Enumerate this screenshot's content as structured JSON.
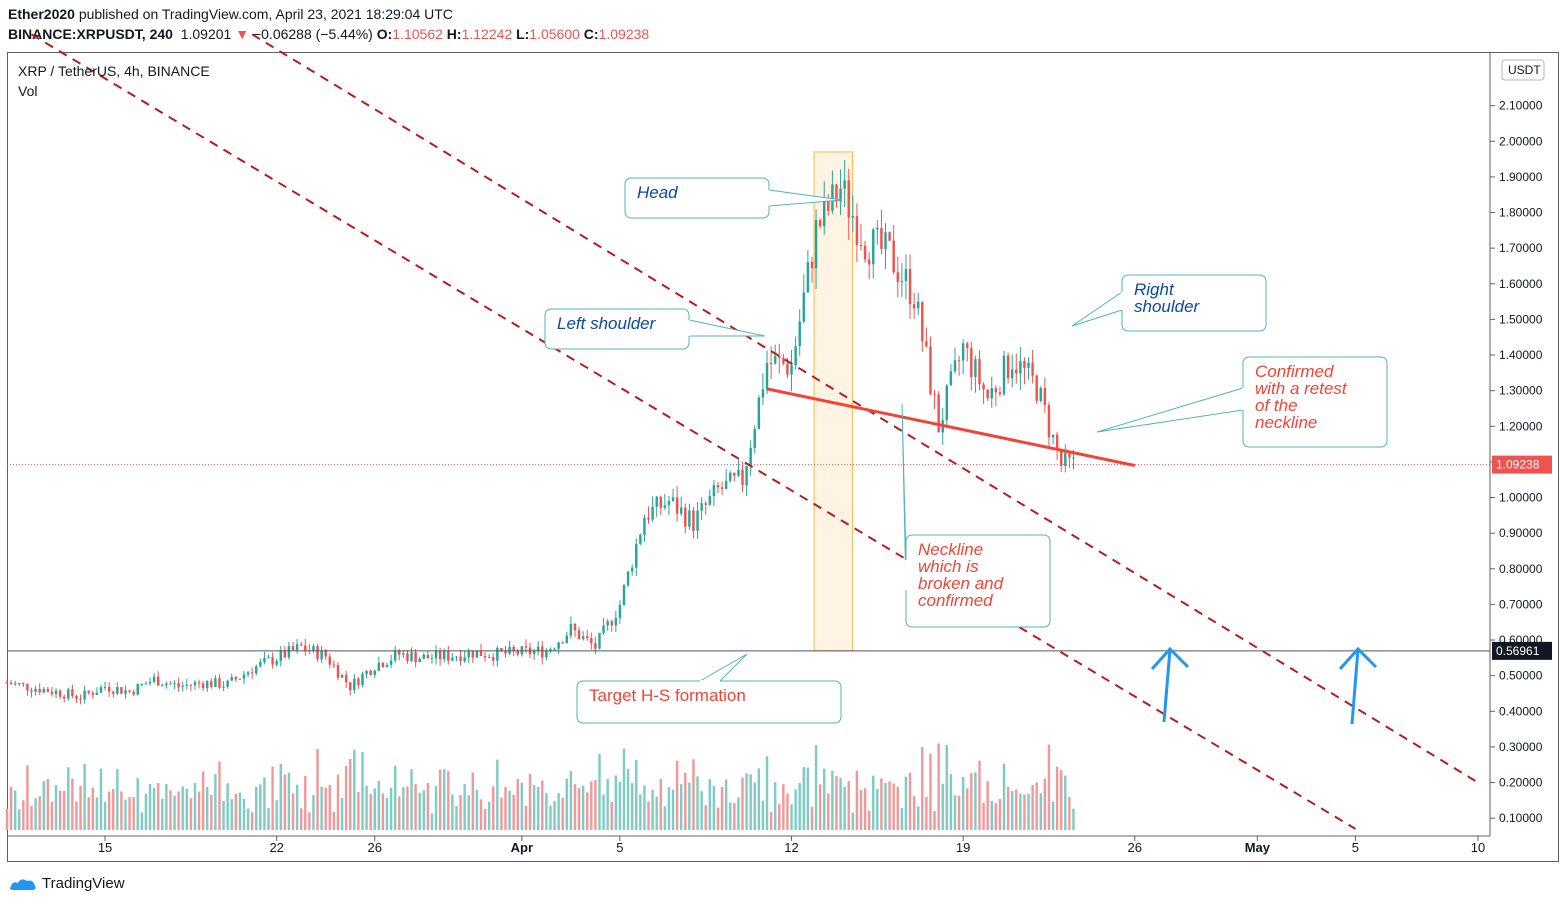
{
  "header": {
    "author": "Ether2020",
    "published_text": "published on TradingView.com, April 23, 2021 18:29:04 UTC",
    "symbol": "BINANCE:XRPUSDT, 240",
    "last": "1.09201",
    "change_arrow": "▼",
    "change": "−0.06288 (−5.44%)",
    "o_label": "O:",
    "o_value": "1.10562",
    "h_label": "H:",
    "h_value": "1.12242",
    "l_label": "L:",
    "l_value": "1.05600",
    "c_label": "C:",
    "c_value": "1.09238"
  },
  "legend": {
    "title": "XRP / TetherUS, 4h, BINANCE",
    "volume_label": "Vol"
  },
  "footer": {
    "brand": "TradingView"
  },
  "colors": {
    "up": "#26a69a",
    "down": "#ef5350",
    "up_vol": "#80cbc4",
    "down_vol": "#ef9a9a",
    "channel": "#b71c1c",
    "neckline": "#f44336",
    "annotation_border": "#4fb3bf",
    "blue_text": "#0d47a1",
    "red_text": "#f44336",
    "arrow": "#2196f3"
  },
  "chart_data": {
    "type": "candlestick",
    "y_axis_label": "USDT",
    "ylim": [
      0.05,
      2.2
    ],
    "y_ticks": [
      0.1,
      0.2,
      0.3,
      0.4,
      0.5,
      0.6,
      0.7,
      0.8,
      0.9,
      1.0,
      1.1,
      1.2,
      1.3,
      1.4,
      1.5,
      1.6,
      1.7,
      1.8,
      1.9,
      2.0,
      2.1
    ],
    "y_tick_labels": [
      "0.10000",
      "0.20000",
      "0.30000",
      "0.40000",
      "0.50000",
      "0.60000",
      "0.70000",
      "0.80000",
      "0.90000",
      "1.00000",
      "1.10000",
      "1.20000",
      "1.30000",
      "1.40000",
      "1.50000",
      "1.60000",
      "1.70000",
      "1.80000",
      "1.90000",
      "2.00000",
      "2.10000"
    ],
    "x_range_days": [
      "2021-03-11",
      "2021-05-10"
    ],
    "x_ticks": [
      {
        "date": "2021-03-15",
        "label": "15"
      },
      {
        "date": "2021-03-22",
        "label": "22"
      },
      {
        "date": "2021-03-26",
        "label": "26"
      },
      {
        "date": "2021-04-01",
        "label": "Apr"
      },
      {
        "date": "2021-04-05",
        "label": "5"
      },
      {
        "date": "2021-04-12",
        "label": "12"
      },
      {
        "date": "2021-04-19",
        "label": "19"
      },
      {
        "date": "2021-04-26",
        "label": "26"
      },
      {
        "date": "2021-05-01",
        "label": "May"
      },
      {
        "date": "2021-05-05",
        "label": "5"
      },
      {
        "date": "2021-05-10",
        "label": "10"
      }
    ],
    "last_price": {
      "value": 1.09238,
      "label": "1.09238"
    },
    "support_line": {
      "value": 0.56961,
      "label": "0.56961"
    },
    "price_path": [
      [
        "2021-03-11",
        0.48
      ],
      [
        "2021-03-13",
        0.455
      ],
      [
        "2021-03-14",
        0.44
      ],
      [
        "2021-03-15",
        0.47
      ],
      [
        "2021-03-16",
        0.455
      ],
      [
        "2021-03-17",
        0.49
      ],
      [
        "2021-03-18",
        0.47
      ],
      [
        "2021-03-19",
        0.48
      ],
      [
        "2021-03-20",
        0.475
      ],
      [
        "2021-03-21",
        0.52
      ],
      [
        "2021-03-22",
        0.55
      ],
      [
        "2021-03-23",
        0.58
      ],
      [
        "2021-03-24",
        0.555
      ],
      [
        "2021-03-25",
        0.47
      ],
      [
        "2021-03-26",
        0.53
      ],
      [
        "2021-03-27",
        0.56
      ],
      [
        "2021-03-28",
        0.55
      ],
      [
        "2021-03-29",
        0.555
      ],
      [
        "2021-03-30",
        0.565
      ],
      [
        "2021-03-31",
        0.56
      ],
      [
        "2021-04-01",
        0.565
      ],
      [
        "2021-04-02",
        0.57
      ],
      [
        "2021-04-03",
        0.63
      ],
      [
        "2021-04-04",
        0.58
      ],
      [
        "2021-04-05",
        0.7
      ],
      [
        "2021-04-06",
        0.95
      ],
      [
        "2021-04-07",
        0.99
      ],
      [
        "2021-04-08",
        0.93
      ],
      [
        "2021-04-09",
        1.02
      ],
      [
        "2021-04-10",
        1.05
      ],
      [
        "2021-04-11",
        1.38
      ],
      [
        "2021-04-12",
        1.37
      ],
      [
        "2021-04-13",
        1.75
      ],
      [
        "2021-04-14",
        1.87
      ],
      [
        "2021-04-15",
        1.72
      ],
      [
        "2021-04-16",
        1.68
      ],
      [
        "2021-04-17",
        1.57
      ],
      [
        "2021-04-18",
        1.2
      ],
      [
        "2021-04-19",
        1.42
      ],
      [
        "2021-04-20",
        1.28
      ],
      [
        "2021-04-21",
        1.39
      ],
      [
        "2021-04-22",
        1.31
      ],
      [
        "2021-04-23",
        1.09
      ]
    ],
    "channel_lines": [
      {
        "from": [
          "2021-03-12",
          2.3
        ],
        "to": [
          "2021-05-05",
          0.07
        ]
      },
      {
        "from": [
          "2021-03-21",
          2.3
        ],
        "to": [
          "2021-05-10",
          0.2
        ]
      }
    ],
    "neckline": {
      "from": [
        "2021-04-11",
        1.305
      ],
      "to": [
        "2021-04-26",
        1.09
      ]
    },
    "head_zone": {
      "from": "2021-04-13",
      "to": "2021-04-14",
      "low": 0.56961,
      "high": 1.97
    }
  },
  "annotations": {
    "head": "Head",
    "left_shoulder": "Left shoulder",
    "right_shoulder_1": "Right",
    "right_shoulder_2": "shoulder",
    "confirmed_1": "Confirmed",
    "confirmed_2": "with a retest",
    "confirmed_3": "of the",
    "confirmed_4": "neckline",
    "neckline_1": "Neckline",
    "neckline_2": "which is",
    "neckline_3": "broken and",
    "neckline_4": "confirmed",
    "target": "Target H-S formation"
  }
}
